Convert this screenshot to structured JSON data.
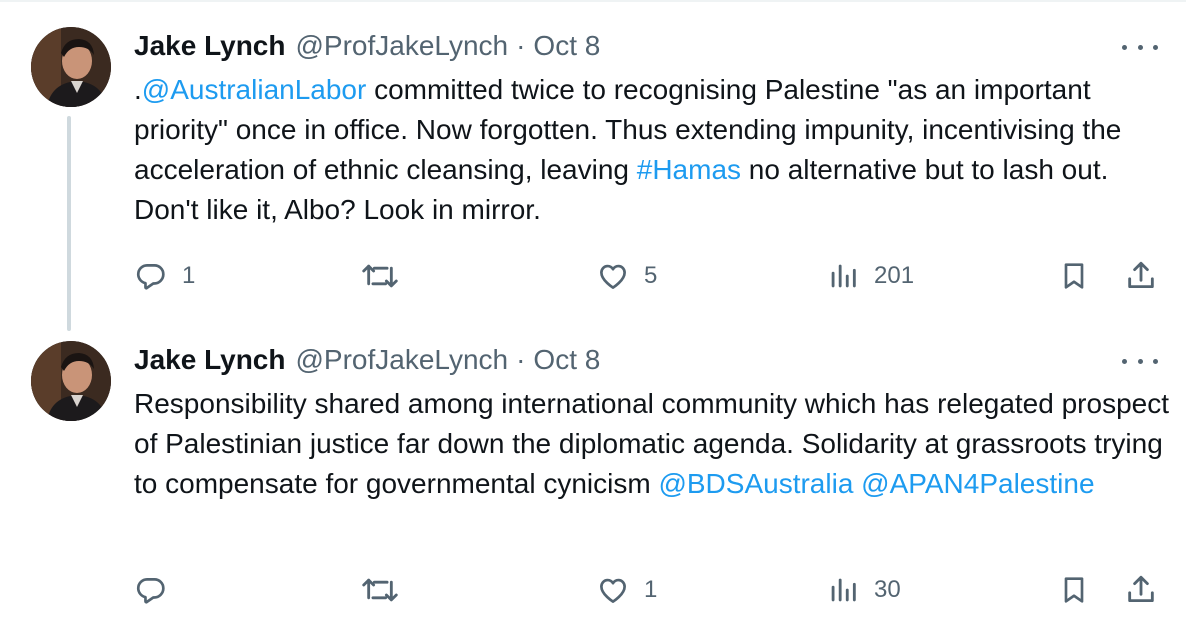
{
  "tweets": [
    {
      "author_name": "Jake Lynch",
      "handle": "@ProfJakeLynch",
      "separator": "·",
      "date": "Oct 8",
      "text_parts": {
        "p0": ".",
        "m0": "@AustralianLabor",
        "p1": " committed twice to recognising Palestine \"as an important priority\" once in office. Now forgotten. Thus extending impunity, incentivising the acceleration of ethnic cleansing, leaving ",
        "m1": "#Hamas",
        "p2": " no alternative but to lash out. Don't like it, Albo? Look in mirror."
      },
      "replies": "1",
      "reposts": "",
      "likes": "5",
      "views": "201"
    },
    {
      "author_name": "Jake Lynch",
      "handle": "@ProfJakeLynch",
      "separator": "·",
      "date": "Oct 8",
      "text_parts": {
        "p0": "Responsibility shared among international community which has relegated prospect of Palestinian justice far down the diplomatic agenda. Solidarity at grassroots trying to compensate for governmental cynicism ",
        "m0": "@BDSAustralia",
        "p1": " ",
        "m1": "@APAN4Palestine"
      },
      "replies": "",
      "reposts": "",
      "likes": "1",
      "views": "30"
    }
  ],
  "icons": {
    "reply": "reply-icon",
    "repost": "repost-icon",
    "like": "like-icon",
    "views": "views-icon",
    "bookmark": "bookmark-icon",
    "share": "share-icon",
    "more": "more-icon"
  },
  "colors": {
    "link": "#1d9bf0",
    "secondary_text": "#536471",
    "thread_line": "#cfd9de"
  }
}
